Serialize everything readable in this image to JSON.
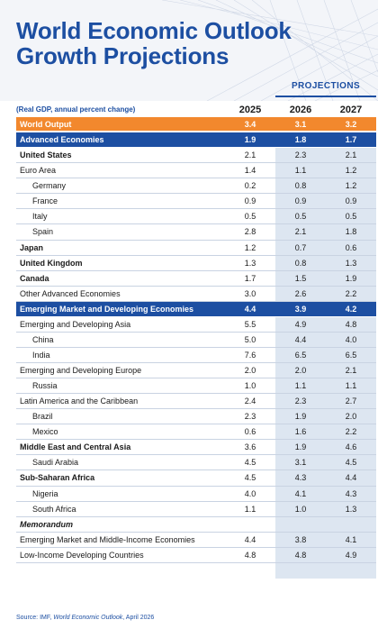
{
  "title_line1": "World Economic Outlook",
  "title_line2": "Growth Projections",
  "projections_label": "PROJECTIONS",
  "subheading": "(Real GDP, annual percent change)",
  "years": [
    "2025",
    "2026",
    "2027"
  ],
  "rows": [
    {
      "name": "World Output",
      "style": "orange",
      "v": [
        "3.4",
        "3.1",
        "3.2"
      ]
    },
    {
      "name": "Advanced Economies",
      "style": "blue",
      "v": [
        "1.9",
        "1.8",
        "1.7"
      ]
    },
    {
      "name": "United States",
      "style": "bold",
      "v": [
        "2.1",
        "2.3",
        "2.1"
      ]
    },
    {
      "name": "Euro Area",
      "style": "normal",
      "v": [
        "1.4",
        "1.1",
        "1.2"
      ]
    },
    {
      "name": "Germany",
      "style": "indent",
      "v": [
        "0.2",
        "0.8",
        "1.2"
      ]
    },
    {
      "name": "France",
      "style": "indent",
      "v": [
        "0.9",
        "0.9",
        "0.9"
      ]
    },
    {
      "name": "Italy",
      "style": "indent",
      "v": [
        "0.5",
        "0.5",
        "0.5"
      ]
    },
    {
      "name": "Spain",
      "style": "indent",
      "v": [
        "2.8",
        "2.1",
        "1.8"
      ]
    },
    {
      "name": "Japan",
      "style": "bold",
      "v": [
        "1.2",
        "0.7",
        "0.6"
      ]
    },
    {
      "name": "United Kingdom",
      "style": "bold",
      "v": [
        "1.3",
        "0.8",
        "1.3"
      ]
    },
    {
      "name": "Canada",
      "style": "bold",
      "v": [
        "1.7",
        "1.5",
        "1.9"
      ]
    },
    {
      "name": "Other Advanced Economies",
      "style": "normal",
      "v": [
        "3.0",
        "2.6",
        "2.2"
      ]
    },
    {
      "name": "Emerging Market and Developing Economies",
      "style": "blue",
      "v": [
        "4.4",
        "3.9",
        "4.2"
      ]
    },
    {
      "name": "Emerging and Developing Asia",
      "style": "normal",
      "v": [
        "5.5",
        "4.9",
        "4.8"
      ]
    },
    {
      "name": "China",
      "style": "indent",
      "v": [
        "5.0",
        "4.4",
        "4.0"
      ]
    },
    {
      "name": "India",
      "style": "indent",
      "v": [
        "7.6",
        "6.5",
        "6.5"
      ]
    },
    {
      "name": "Emerging and Developing Europe",
      "style": "normal",
      "v": [
        "2.0",
        "2.0",
        "2.1"
      ]
    },
    {
      "name": "Russia",
      "style": "indent",
      "v": [
        "1.0",
        "1.1",
        "1.1"
      ]
    },
    {
      "name": "Latin America and the Caribbean",
      "style": "normal",
      "v": [
        "2.4",
        "2.3",
        "2.7"
      ]
    },
    {
      "name": "Brazil",
      "style": "indent",
      "v": [
        "2.3",
        "1.9",
        "2.0"
      ]
    },
    {
      "name": "Mexico",
      "style": "indent",
      "v": [
        "0.6",
        "1.6",
        "2.2"
      ]
    },
    {
      "name": "Middle East and Central Asia",
      "style": "bold",
      "v": [
        "3.6",
        "1.9",
        "4.6"
      ]
    },
    {
      "name": "Saudi Arabia",
      "style": "indent",
      "v": [
        "4.5",
        "3.1",
        "4.5"
      ]
    },
    {
      "name": "Sub-Saharan Africa",
      "style": "bold",
      "v": [
        "4.5",
        "4.3",
        "4.4"
      ]
    },
    {
      "name": "Nigeria",
      "style": "indent",
      "v": [
        "4.0",
        "4.1",
        "4.3"
      ]
    },
    {
      "name": "South Africa",
      "style": "indent",
      "v": [
        "1.1",
        "1.0",
        "1.3"
      ]
    },
    {
      "name": "Memorandum",
      "style": "memo",
      "v": [
        "",
        "",
        ""
      ]
    },
    {
      "name": "Emerging Market and Middle-Income Economies",
      "style": "normal",
      "v": [
        "4.4",
        "3.8",
        "4.1"
      ]
    },
    {
      "name": "Low-Income Developing Countries",
      "style": "normal",
      "v": [
        "4.8",
        "4.8",
        "4.9"
      ]
    }
  ],
  "source_prefix": "Source: IMF, ",
  "source_title": "World Economic Outlook",
  "source_suffix": ", April 2026",
  "colors": {
    "brand_blue": "#1d4fa2",
    "orange": "#f2882d",
    "shade": "#dde6f1"
  }
}
